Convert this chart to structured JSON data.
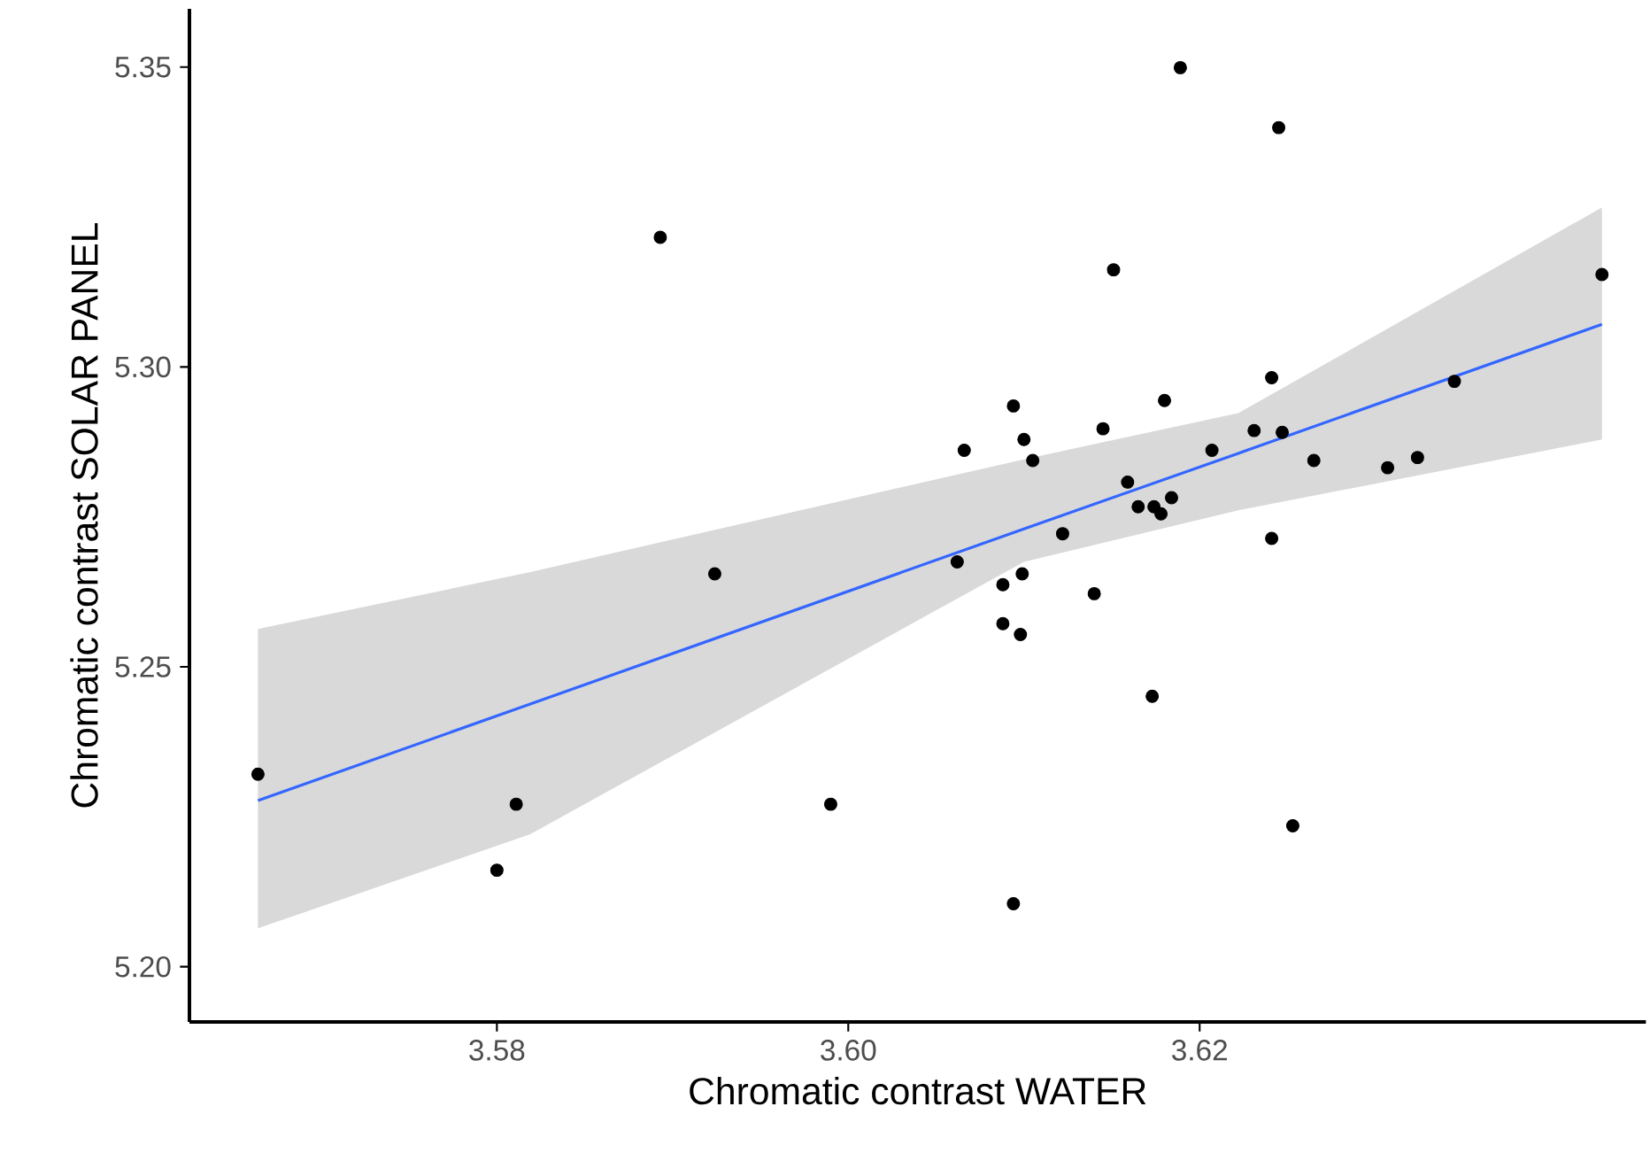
{
  "chart_data": {
    "type": "scatter",
    "xlabel": "Chromatic contrast WATER",
    "ylabel": "Chromatic contrast SOLAR PANEL",
    "xlim": [
      3.5625,
      3.6454
    ],
    "ylim": [
      5.1908,
      5.3597
    ],
    "xticks": [
      {
        "value": 3.58,
        "label": "3.58"
      },
      {
        "value": 3.6,
        "label": "3.60"
      },
      {
        "value": 3.62,
        "label": "3.62"
      }
    ],
    "yticks": [
      {
        "value": 5.2,
        "label": "5.20"
      },
      {
        "value": 5.25,
        "label": "5.25"
      },
      {
        "value": 5.3,
        "label": "5.30"
      },
      {
        "value": 5.35,
        "label": "5.35"
      }
    ],
    "series": [
      {
        "type": "scatter",
        "color": "#000000",
        "x": [
          3.5664,
          3.58,
          3.5811,
          3.5893,
          3.5924,
          3.599,
          3.6062,
          3.6066,
          3.6088,
          3.6088,
          3.6094,
          3.6094,
          3.6098,
          3.6099,
          3.61,
          3.6105,
          3.6122,
          3.614,
          3.6145,
          3.6151,
          3.6159,
          3.6165,
          3.6173,
          3.6174,
          3.6178,
          3.618,
          3.6184,
          3.6189,
          3.6207,
          3.6231,
          3.6241,
          3.6241,
          3.6245,
          3.6247,
          3.6253,
          3.6265,
          3.6307,
          3.6324,
          3.6345,
          3.6429
        ],
        "values": [
          5.2321,
          5.2161,
          5.2271,
          5.3216,
          5.2655,
          5.2271,
          5.2675,
          5.2861,
          5.2637,
          5.2572,
          5.2935,
          5.2105,
          5.2554,
          5.2655,
          5.2879,
          5.2844,
          5.2722,
          5.2622,
          5.2897,
          5.3162,
          5.2808,
          5.2767,
          5.2451,
          5.2767,
          5.2755,
          5.2944,
          5.2782,
          5.3499,
          5.2861,
          5.2894,
          5.2982,
          5.2714,
          5.3399,
          5.2891,
          5.2235,
          5.2844,
          5.2832,
          5.2849,
          5.2976,
          5.3154
        ]
      },
      {
        "type": "line",
        "color": "#3366ff",
        "x": [
          3.5664,
          3.5819,
          3.61,
          3.6222,
          3.6429
        ],
        "values": [
          5.2277,
          5.2438,
          5.273,
          5.2856,
          5.3071
        ],
        "lower": [
          5.2064,
          5.2221,
          5.2675,
          5.2761,
          5.2879
        ],
        "upper": [
          5.2563,
          5.2658,
          5.2846,
          5.2923,
          5.3266
        ]
      }
    ]
  }
}
